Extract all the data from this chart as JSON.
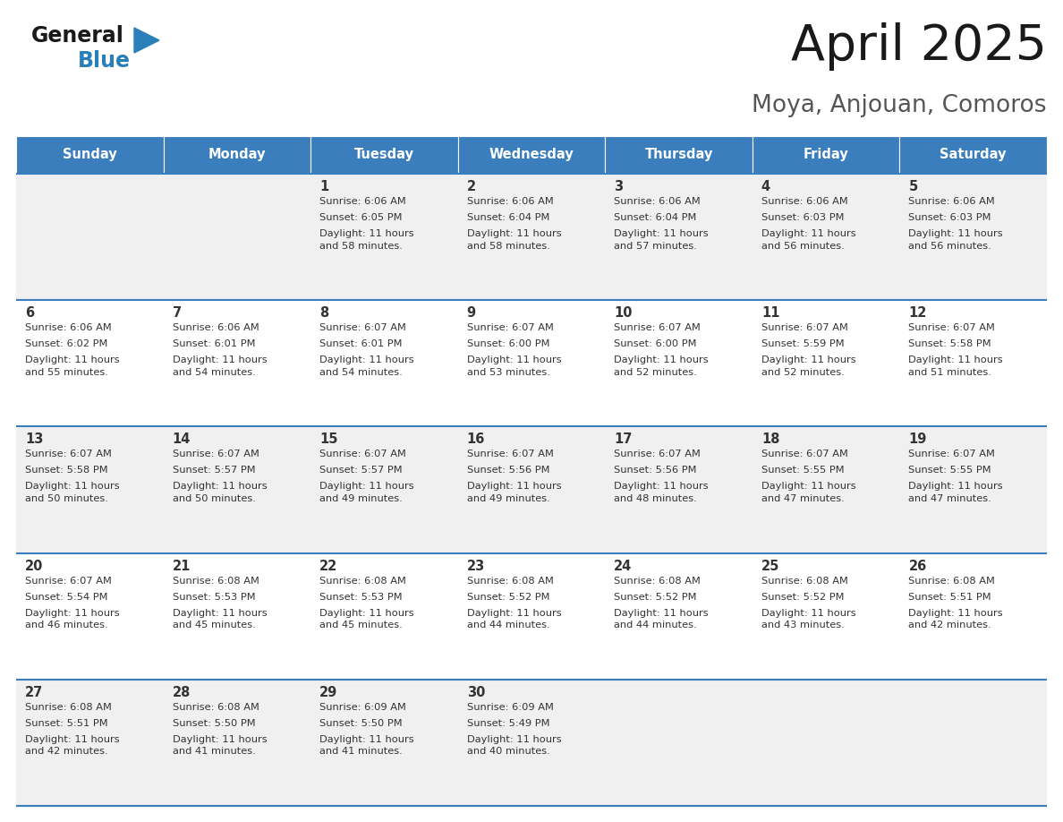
{
  "title": "April 2025",
  "subtitle": "Moya, Anjouan, Comoros",
  "header_bg": "#3A7EBD",
  "header_text_color": "#FFFFFF",
  "day_names": [
    "Sunday",
    "Monday",
    "Tuesday",
    "Wednesday",
    "Thursday",
    "Friday",
    "Saturday"
  ],
  "row_bg_odd": "#F0F0F0",
  "row_bg_even": "#FFFFFF",
  "cell_text_color": "#333333",
  "separator_color": "#3A7EBD",
  "logo_color1": "#1A1A1A",
  "logo_color2": "#2980B9",
  "logo_triangle_color": "#2980B9",
  "calendar_data": [
    [
      {
        "day": "",
        "sunrise": "",
        "sunset": "",
        "daylight": ""
      },
      {
        "day": "",
        "sunrise": "",
        "sunset": "",
        "daylight": ""
      },
      {
        "day": "1",
        "sunrise": "Sunrise: 6:06 AM",
        "sunset": "Sunset: 6:05 PM",
        "daylight": "Daylight: 11 hours\nand 58 minutes."
      },
      {
        "day": "2",
        "sunrise": "Sunrise: 6:06 AM",
        "sunset": "Sunset: 6:04 PM",
        "daylight": "Daylight: 11 hours\nand 58 minutes."
      },
      {
        "day": "3",
        "sunrise": "Sunrise: 6:06 AM",
        "sunset": "Sunset: 6:04 PM",
        "daylight": "Daylight: 11 hours\nand 57 minutes."
      },
      {
        "day": "4",
        "sunrise": "Sunrise: 6:06 AM",
        "sunset": "Sunset: 6:03 PM",
        "daylight": "Daylight: 11 hours\nand 56 minutes."
      },
      {
        "day": "5",
        "sunrise": "Sunrise: 6:06 AM",
        "sunset": "Sunset: 6:03 PM",
        "daylight": "Daylight: 11 hours\nand 56 minutes."
      }
    ],
    [
      {
        "day": "6",
        "sunrise": "Sunrise: 6:06 AM",
        "sunset": "Sunset: 6:02 PM",
        "daylight": "Daylight: 11 hours\nand 55 minutes."
      },
      {
        "day": "7",
        "sunrise": "Sunrise: 6:06 AM",
        "sunset": "Sunset: 6:01 PM",
        "daylight": "Daylight: 11 hours\nand 54 minutes."
      },
      {
        "day": "8",
        "sunrise": "Sunrise: 6:07 AM",
        "sunset": "Sunset: 6:01 PM",
        "daylight": "Daylight: 11 hours\nand 54 minutes."
      },
      {
        "day": "9",
        "sunrise": "Sunrise: 6:07 AM",
        "sunset": "Sunset: 6:00 PM",
        "daylight": "Daylight: 11 hours\nand 53 minutes."
      },
      {
        "day": "10",
        "sunrise": "Sunrise: 6:07 AM",
        "sunset": "Sunset: 6:00 PM",
        "daylight": "Daylight: 11 hours\nand 52 minutes."
      },
      {
        "day": "11",
        "sunrise": "Sunrise: 6:07 AM",
        "sunset": "Sunset: 5:59 PM",
        "daylight": "Daylight: 11 hours\nand 52 minutes."
      },
      {
        "day": "12",
        "sunrise": "Sunrise: 6:07 AM",
        "sunset": "Sunset: 5:58 PM",
        "daylight": "Daylight: 11 hours\nand 51 minutes."
      }
    ],
    [
      {
        "day": "13",
        "sunrise": "Sunrise: 6:07 AM",
        "sunset": "Sunset: 5:58 PM",
        "daylight": "Daylight: 11 hours\nand 50 minutes."
      },
      {
        "day": "14",
        "sunrise": "Sunrise: 6:07 AM",
        "sunset": "Sunset: 5:57 PM",
        "daylight": "Daylight: 11 hours\nand 50 minutes."
      },
      {
        "day": "15",
        "sunrise": "Sunrise: 6:07 AM",
        "sunset": "Sunset: 5:57 PM",
        "daylight": "Daylight: 11 hours\nand 49 minutes."
      },
      {
        "day": "16",
        "sunrise": "Sunrise: 6:07 AM",
        "sunset": "Sunset: 5:56 PM",
        "daylight": "Daylight: 11 hours\nand 49 minutes."
      },
      {
        "day": "17",
        "sunrise": "Sunrise: 6:07 AM",
        "sunset": "Sunset: 5:56 PM",
        "daylight": "Daylight: 11 hours\nand 48 minutes."
      },
      {
        "day": "18",
        "sunrise": "Sunrise: 6:07 AM",
        "sunset": "Sunset: 5:55 PM",
        "daylight": "Daylight: 11 hours\nand 47 minutes."
      },
      {
        "day": "19",
        "sunrise": "Sunrise: 6:07 AM",
        "sunset": "Sunset: 5:55 PM",
        "daylight": "Daylight: 11 hours\nand 47 minutes."
      }
    ],
    [
      {
        "day": "20",
        "sunrise": "Sunrise: 6:07 AM",
        "sunset": "Sunset: 5:54 PM",
        "daylight": "Daylight: 11 hours\nand 46 minutes."
      },
      {
        "day": "21",
        "sunrise": "Sunrise: 6:08 AM",
        "sunset": "Sunset: 5:53 PM",
        "daylight": "Daylight: 11 hours\nand 45 minutes."
      },
      {
        "day": "22",
        "sunrise": "Sunrise: 6:08 AM",
        "sunset": "Sunset: 5:53 PM",
        "daylight": "Daylight: 11 hours\nand 45 minutes."
      },
      {
        "day": "23",
        "sunrise": "Sunrise: 6:08 AM",
        "sunset": "Sunset: 5:52 PM",
        "daylight": "Daylight: 11 hours\nand 44 minutes."
      },
      {
        "day": "24",
        "sunrise": "Sunrise: 6:08 AM",
        "sunset": "Sunset: 5:52 PM",
        "daylight": "Daylight: 11 hours\nand 44 minutes."
      },
      {
        "day": "25",
        "sunrise": "Sunrise: 6:08 AM",
        "sunset": "Sunset: 5:52 PM",
        "daylight": "Daylight: 11 hours\nand 43 minutes."
      },
      {
        "day": "26",
        "sunrise": "Sunrise: 6:08 AM",
        "sunset": "Sunset: 5:51 PM",
        "daylight": "Daylight: 11 hours\nand 42 minutes."
      }
    ],
    [
      {
        "day": "27",
        "sunrise": "Sunrise: 6:08 AM",
        "sunset": "Sunset: 5:51 PM",
        "daylight": "Daylight: 11 hours\nand 42 minutes."
      },
      {
        "day": "28",
        "sunrise": "Sunrise: 6:08 AM",
        "sunset": "Sunset: 5:50 PM",
        "daylight": "Daylight: 11 hours\nand 41 minutes."
      },
      {
        "day": "29",
        "sunrise": "Sunrise: 6:09 AM",
        "sunset": "Sunset: 5:50 PM",
        "daylight": "Daylight: 11 hours\nand 41 minutes."
      },
      {
        "day": "30",
        "sunrise": "Sunrise: 6:09 AM",
        "sunset": "Sunset: 5:49 PM",
        "daylight": "Daylight: 11 hours\nand 40 minutes."
      },
      {
        "day": "",
        "sunrise": "",
        "sunset": "",
        "daylight": ""
      },
      {
        "day": "",
        "sunrise": "",
        "sunset": "",
        "daylight": ""
      },
      {
        "day": "",
        "sunrise": "",
        "sunset": "",
        "daylight": ""
      }
    ]
  ]
}
